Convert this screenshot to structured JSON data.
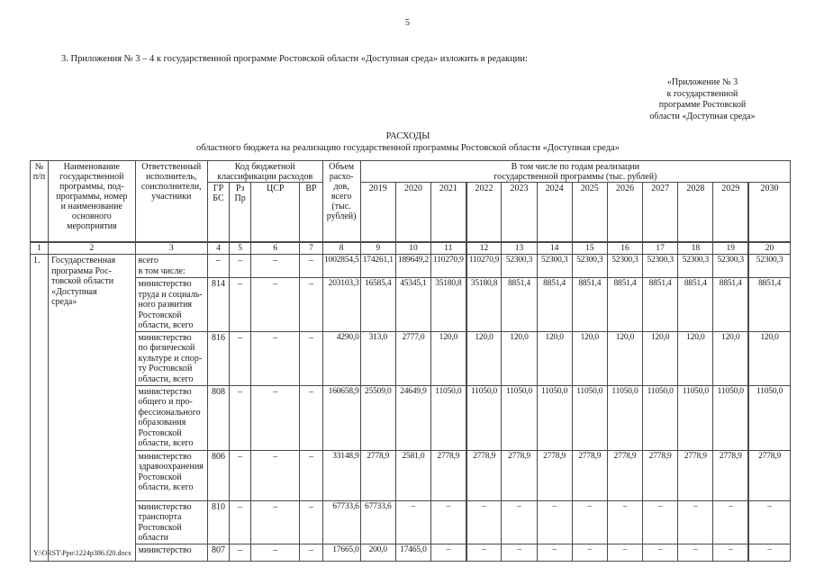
{
  "page": {
    "number": "5",
    "paragraph": "3. Приложения № 3 – 4 к государственной программе Ростовской области «Доступная среда» изложить в редакции:",
    "appendix": "«Приложение № 3\nк государственной\nпрограмме Ростовской\nобласти «Доступная среда»",
    "title": "РАСХОДЫ",
    "subtitle": "областного бюджета на реализацию государственной программы Ростовской области «Доступная среда»",
    "footer_path": "Y:\\ORST\\Ppo\\1224p386.f20.docx"
  },
  "table": {
    "headers": {
      "num": "№\nп/п",
      "name": "Наименование\nгосударственной\nпрограммы, под-\nпрограммы, номер\nи наименование\nосновного\nмероприятия",
      "executor": "Ответственный\nисполнитель,\nсоисполнители,\nучастники",
      "code_group": "Код бюджетной\nклассификации расходов",
      "grbs": "ГР\nБС",
      "rzpr": "Рз\nПр",
      "csr": "ЦСР",
      "vr": "ВР",
      "volume": "Объем\nрасхо-\nдов,\nвсего\n(тыс.\nрублей)",
      "years_group": "В том числе по годам реализации\nгосударственной программы (тыс. рублей)",
      "years": [
        "2019",
        "2020",
        "2021",
        "2022",
        "2023",
        "2024",
        "2025",
        "2026",
        "2027",
        "2028",
        "2029",
        "2030"
      ]
    },
    "column_numbers": [
      "1",
      "2",
      "3",
      "4",
      "5",
      "6",
      "7",
      "8",
      "9",
      "10",
      "11",
      "12",
      "13",
      "14",
      "15",
      "16",
      "17",
      "18",
      "19",
      "20"
    ],
    "row_number": "1.",
    "program_name": "Государственная\nпрограмма Рос-\nтовской области\n«Доступная\nсреда»",
    "rows": [
      {
        "executor": "всего\nв том числе:",
        "grbs": "–",
        "rzpr": "–",
        "csr": "–",
        "vr": "–",
        "total": "1002854,5",
        "years": [
          "174261,1",
          "189649,2",
          "110270,9",
          "110270,9",
          "52300,3",
          "52300,3",
          "52300,3",
          "52300,3",
          "52300,3",
          "52300,3",
          "52300,3",
          "52300,3"
        ]
      },
      {
        "executor": "министерство\nтруда и социаль-\nного развития\nРостовской\nобласти, всего",
        "grbs": "814",
        "rzpr": "–",
        "csr": "–",
        "vr": "–",
        "total": "203103,3",
        "years": [
          "16585,4",
          "45345,1",
          "35180,8",
          "35180,8",
          "8851,4",
          "8851,4",
          "8851,4",
          "8851,4",
          "8851,4",
          "8851,4",
          "8851,4",
          "8851,4"
        ]
      },
      {
        "executor": "министерство\nпо физической\nкультуре и спор-\nту Ростовской\nобласти, всего",
        "grbs": "816",
        "rzpr": "–",
        "csr": "–",
        "vr": "–",
        "total": "4290,0",
        "years": [
          "313,0",
          "2777,0",
          "120,0",
          "120,0",
          "120,0",
          "120,0",
          "120,0",
          "120,0",
          "120,0",
          "120,0",
          "120,0",
          "120,0"
        ]
      },
      {
        "executor": "министерство\nобщего и про-\nфессионального\nобразования\nРостовской\nобласти, всего",
        "grbs": "808",
        "rzpr": "–",
        "csr": "–",
        "vr": "–",
        "total": "160658,9",
        "years": [
          "25509,0",
          "24649,9",
          "11050,0",
          "11050,0",
          "11050,0",
          "11050,0",
          "11050,0",
          "11050,0",
          "11050,0",
          "11050,0",
          "11050,0",
          "11050,0"
        ]
      },
      {
        "executor": "министерство\nздравоохранения\nРостовской\nобласти, всего",
        "grbs": "806",
        "rzpr": "–",
        "csr": "–",
        "vr": "–",
        "total": "33148,9",
        "years": [
          "2778,9",
          "2581,0",
          "2778,9",
          "2778,9",
          "2778,9",
          "2778,9",
          "2778,9",
          "2778,9",
          "2778,9",
          "2778,9",
          "2778,9",
          "2778,9"
        ]
      },
      {
        "executor": "министерство\nтранспорта\nРостовской\nобласти",
        "grbs": "810",
        "rzpr": "–",
        "csr": "–",
        "vr": "–",
        "total": "67733,6",
        "years": [
          "67733,6",
          "–",
          "–",
          "–",
          "–",
          "–",
          "–",
          "–",
          "–",
          "–",
          "–",
          "–"
        ]
      },
      {
        "executor": "министерство",
        "grbs": "807",
        "rzpr": "–",
        "csr": "–",
        "vr": "–",
        "total": "17665,0",
        "years": [
          "200,0",
          "17465,0",
          "–",
          "–",
          "–",
          "–",
          "–",
          "–",
          "–",
          "–",
          "–",
          "–"
        ]
      }
    ]
  }
}
